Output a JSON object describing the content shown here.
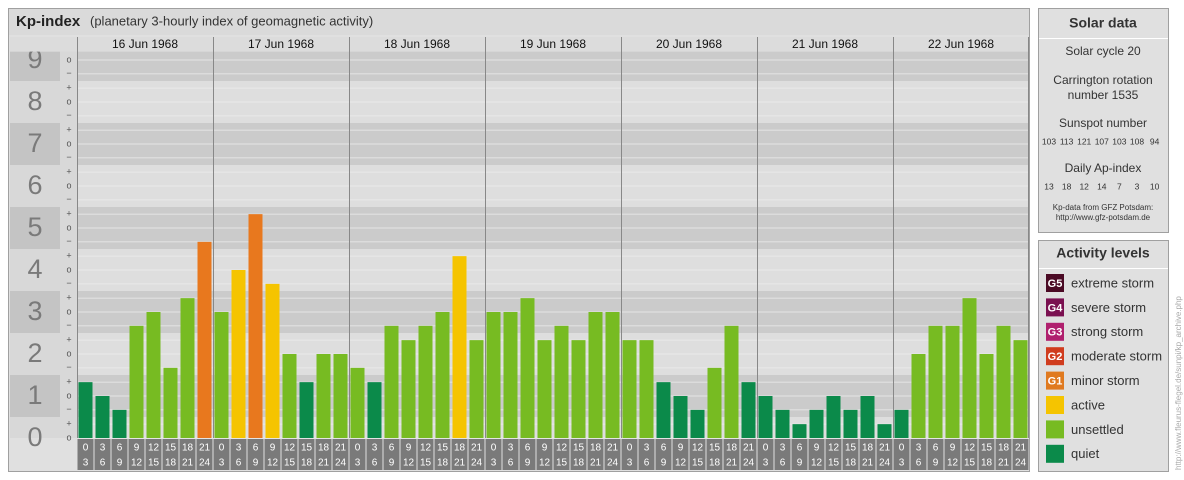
{
  "chart_data": {
    "type": "bar",
    "title": "Kp-index",
    "subtitle": "(planetary 3-hourly index of geomagnetic activity)",
    "days": [
      "16 Jun 1968",
      "17 Jun 1968",
      "18 Jun 1968",
      "19 Jun 1968",
      "20 Jun 1968",
      "21 Jun 1968",
      "22 Jun 1968"
    ],
    "categories": [
      [
        "0",
        "3"
      ],
      [
        "3",
        "6"
      ],
      [
        "6",
        "9"
      ],
      [
        "9",
        "12"
      ],
      [
        "12",
        "15"
      ],
      [
        "15",
        "18"
      ],
      [
        "18",
        "21"
      ],
      [
        "21",
        "24"
      ],
      [
        "0",
        "3"
      ],
      [
        "3",
        "6"
      ],
      [
        "6",
        "9"
      ],
      [
        "9",
        "12"
      ],
      [
        "12",
        "15"
      ],
      [
        "15",
        "18"
      ],
      [
        "18",
        "21"
      ],
      [
        "21",
        "24"
      ],
      [
        "0",
        "3"
      ],
      [
        "3",
        "6"
      ],
      [
        "6",
        "9"
      ],
      [
        "9",
        "12"
      ],
      [
        "12",
        "15"
      ],
      [
        "15",
        "18"
      ],
      [
        "18",
        "21"
      ],
      [
        "21",
        "24"
      ],
      [
        "0",
        "3"
      ],
      [
        "3",
        "6"
      ],
      [
        "6",
        "9"
      ],
      [
        "9",
        "12"
      ],
      [
        "12",
        "15"
      ],
      [
        "15",
        "18"
      ],
      [
        "18",
        "21"
      ],
      [
        "21",
        "24"
      ],
      [
        "0",
        "3"
      ],
      [
        "3",
        "6"
      ],
      [
        "6",
        "9"
      ],
      [
        "9",
        "12"
      ],
      [
        "12",
        "15"
      ],
      [
        "15",
        "18"
      ],
      [
        "18",
        "21"
      ],
      [
        "21",
        "24"
      ],
      [
        "0",
        "3"
      ],
      [
        "3",
        "6"
      ],
      [
        "6",
        "9"
      ],
      [
        "9",
        "12"
      ],
      [
        "12",
        "15"
      ],
      [
        "15",
        "18"
      ],
      [
        "18",
        "21"
      ],
      [
        "21",
        "24"
      ],
      [
        "0",
        "3"
      ],
      [
        "3",
        "6"
      ],
      [
        "6",
        "9"
      ],
      [
        "9",
        "12"
      ],
      [
        "12",
        "15"
      ],
      [
        "15",
        "18"
      ],
      [
        "18",
        "21"
      ],
      [
        "21",
        "24"
      ]
    ],
    "series": [
      {
        "name": "Kp",
        "values": [
          1.33,
          1,
          0.67,
          2.67,
          3,
          1.67,
          3.33,
          4.67,
          3,
          4,
          5.33,
          3.67,
          2,
          1.33,
          2,
          2,
          1.67,
          1.33,
          2.67,
          2.33,
          2.67,
          3,
          4.33,
          2.33,
          3,
          3,
          3.33,
          2.33,
          2.67,
          2.33,
          3,
          3,
          2.33,
          2.33,
          1.33,
          1,
          0.67,
          1.67,
          2.67,
          1.33,
          1,
          0.67,
          0.33,
          0.67,
          1,
          0.67,
          1,
          0.33,
          0.67,
          2,
          2.67,
          2.67,
          3.33,
          2,
          2.67,
          2.33
        ],
        "colors": [
          "#0b8a4a",
          "#0b8a4a",
          "#0b8a4a",
          "#77bb22",
          "#77bb22",
          "#77bb22",
          "#77bb22",
          "#e8781e",
          "#77bb22",
          "#f5c400",
          "#e8781e",
          "#f5c400",
          "#77bb22",
          "#0b8a4a",
          "#77bb22",
          "#77bb22",
          "#77bb22",
          "#0b8a4a",
          "#77bb22",
          "#77bb22",
          "#77bb22",
          "#77bb22",
          "#f5c400",
          "#77bb22",
          "#77bb22",
          "#77bb22",
          "#77bb22",
          "#77bb22",
          "#77bb22",
          "#77bb22",
          "#77bb22",
          "#77bb22",
          "#77bb22",
          "#77bb22",
          "#0b8a4a",
          "#0b8a4a",
          "#0b8a4a",
          "#77bb22",
          "#77bb22",
          "#0b8a4a",
          "#0b8a4a",
          "#0b8a4a",
          "#0b8a4a",
          "#0b8a4a",
          "#0b8a4a",
          "#0b8a4a",
          "#0b8a4a",
          "#0b8a4a",
          "#0b8a4a",
          "#77bb22",
          "#77bb22",
          "#77bb22",
          "#77bb22",
          "#77bb22",
          "#77bb22",
          "#77bb22"
        ]
      }
    ],
    "ylim": [
      0,
      9.2
    ],
    "yticks": [
      0,
      1,
      2,
      3,
      4,
      5,
      6,
      7,
      8,
      9
    ],
    "yminorticks": [
      {
        "value": 0,
        "label": "o"
      },
      {
        "value": 0.33,
        "label": "+"
      },
      {
        "value": 0.67,
        "label": "−"
      },
      {
        "value": 1,
        "label": "o"
      },
      {
        "value": 1.33,
        "label": "+"
      },
      {
        "value": 1.67,
        "label": "−"
      },
      {
        "value": 2,
        "label": "o"
      },
      {
        "value": 2.33,
        "label": "+"
      },
      {
        "value": 2.67,
        "label": "−"
      },
      {
        "value": 3,
        "label": "o"
      },
      {
        "value": 3.33,
        "label": "+"
      },
      {
        "value": 3.67,
        "label": "−"
      },
      {
        "value": 4,
        "label": "o"
      },
      {
        "value": 4.33,
        "label": "+"
      },
      {
        "value": 4.67,
        "label": "−"
      },
      {
        "value": 5,
        "label": "o"
      },
      {
        "value": 5.33,
        "label": "+"
      },
      {
        "value": 5.67,
        "label": "−"
      },
      {
        "value": 6,
        "label": "o"
      },
      {
        "value": 6.33,
        "label": "+"
      },
      {
        "value": 6.67,
        "label": "−"
      },
      {
        "value": 7,
        "label": "o"
      },
      {
        "value": 7.33,
        "label": "+"
      },
      {
        "value": 7.67,
        "label": "−"
      },
      {
        "value": 8,
        "label": "o"
      },
      {
        "value": 8.33,
        "label": "+"
      },
      {
        "value": 8.67,
        "label": "−"
      },
      {
        "value": 9,
        "label": "o"
      }
    ],
    "grid": true
  },
  "solar_data": {
    "title": "Solar data",
    "cycle": "Solar cycle 20",
    "carrington": [
      "Carrington rotation",
      "number 1535"
    ],
    "sunspot_title": "Sunspot number",
    "sunspot": [
      103,
      113,
      121,
      107,
      103,
      108,
      94
    ],
    "ap_title": "Daily Ap-index",
    "ap": [
      13,
      18,
      12,
      14,
      7,
      3,
      10
    ],
    "source": [
      "Kp-data from GFZ Potsdam:",
      "http://www.gfz-potsdam.de"
    ]
  },
  "activity_levels": {
    "title": "Activity levels",
    "items": [
      {
        "badge": "G5",
        "label": "extreme storm",
        "color": "#4a0a24"
      },
      {
        "badge": "G4",
        "label": "severe storm",
        "color": "#7a1050"
      },
      {
        "badge": "G3",
        "label": "strong storm",
        "color": "#b0206e"
      },
      {
        "badge": "G2",
        "label": "moderate storm",
        "color": "#d03c1e"
      },
      {
        "badge": "G1",
        "label": "minor storm",
        "color": "#e07a20"
      },
      {
        "label": "active",
        "color": "#f5c400"
      },
      {
        "label": "unsettled",
        "color": "#77bb22"
      },
      {
        "label": "quiet",
        "color": "#0b8a4a"
      }
    ]
  },
  "footer_url": "http://www.fleurus-flegel.de/sunpi/kp_archive.php"
}
